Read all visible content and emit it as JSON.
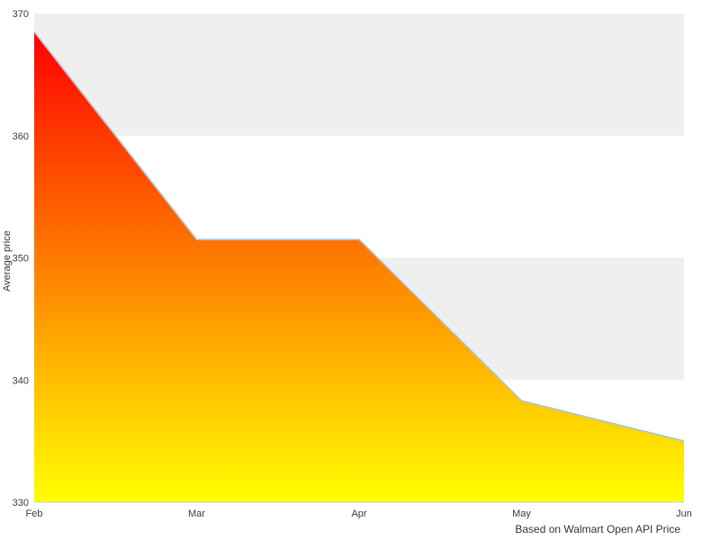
{
  "chart_data": {
    "type": "area",
    "title": "",
    "x": [
      "Feb",
      "Mar",
      "Apr",
      "May",
      "Jun"
    ],
    "series": [
      {
        "name": "Average price",
        "values": [
          368.5,
          351.5,
          351.5,
          338.3,
          335.0
        ]
      }
    ],
    "xlabel": "",
    "ylabel": "Average price",
    "caption": "Based on Walmart Open API Price",
    "ylim": [
      330,
      370
    ],
    "yticks": [
      330,
      340,
      350,
      360,
      370
    ],
    "bands": [
      [
        340,
        350
      ],
      [
        360,
        370
      ]
    ],
    "legend": false,
    "grid": "banded",
    "colors": {
      "gradient_top": "#ff0000",
      "gradient_bottom": "#ffff00",
      "line": "#a5c8d8",
      "band": "#efefef",
      "axis_text": "#3c3c3c",
      "axis_line": "#cccccc",
      "background": "#ffffff"
    }
  }
}
